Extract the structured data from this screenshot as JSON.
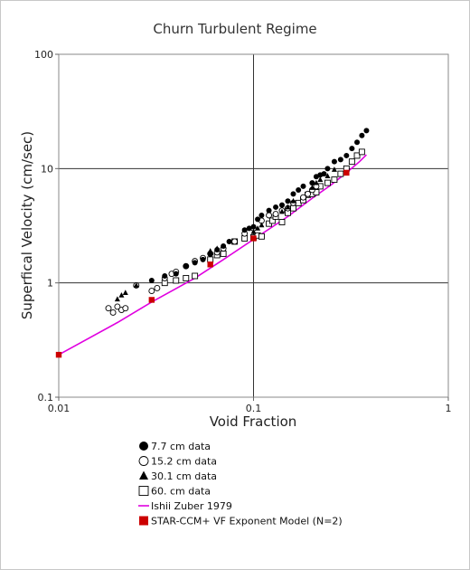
{
  "chart_data": {
    "type": "scatter",
    "title": "Churn Turbulent Regime",
    "xlabel": "Void Fraction",
    "ylabel": "Superfical Velocity (cm/sec)",
    "xscale": "log",
    "yscale": "log",
    "xlim": [
      0.01,
      1
    ],
    "ylim": [
      0.1,
      100
    ],
    "x_ticks": [
      "0.01",
      "0.1",
      "1"
    ],
    "y_ticks": [
      "0.1",
      "1",
      "10",
      "100"
    ],
    "grid": "major gridlines at 0.1 (x) and 1, 10 (y)",
    "legend_position": "below plot",
    "series": [
      {
        "name": "7.7 cm data",
        "marker": "filled-circle",
        "color": "#000000",
        "x": [
          0.03,
          0.035,
          0.04,
          0.045,
          0.05,
          0.055,
          0.06,
          0.065,
          0.07,
          0.075,
          0.09,
          0.095,
          0.1,
          0.105,
          0.11,
          0.12,
          0.13,
          0.14,
          0.15,
          0.16,
          0.17,
          0.18,
          0.2,
          0.21,
          0.22,
          0.23,
          0.24,
          0.26,
          0.28,
          0.3,
          0.32,
          0.34,
          0.36,
          0.38
        ],
        "y": [
          1.05,
          1.15,
          1.2,
          1.4,
          1.5,
          1.6,
          1.8,
          1.95,
          2.1,
          2.3,
          2.9,
          3.0,
          3.1,
          3.6,
          3.9,
          4.3,
          4.6,
          4.8,
          5.2,
          6.0,
          6.5,
          7.0,
          7.5,
          8.5,
          8.8,
          9.0,
          10.0,
          11.5,
          12.0,
          13.0,
          15.0,
          17.0,
          19.5,
          21.5
        ]
      },
      {
        "name": "15.2 cm data",
        "marker": "open-circle",
        "color": "#000000",
        "x": [
          0.018,
          0.019,
          0.02,
          0.021,
          0.022,
          0.025,
          0.03,
          0.032,
          0.035,
          0.038,
          0.04,
          0.045,
          0.05,
          0.055,
          0.06,
          0.065,
          0.07,
          0.08,
          0.09,
          0.1,
          0.11,
          0.12,
          0.13,
          0.14,
          0.15,
          0.16,
          0.18,
          0.19,
          0.2,
          0.21
        ],
        "y": [
          0.6,
          0.55,
          0.62,
          0.58,
          0.6,
          0.95,
          0.85,
          0.9,
          1.1,
          1.2,
          1.25,
          1.4,
          1.55,
          1.65,
          1.8,
          1.85,
          2.0,
          2.3,
          2.7,
          3.0,
          3.5,
          3.9,
          4.0,
          4.3,
          4.5,
          5.0,
          5.6,
          6.0,
          6.5,
          7.0
        ]
      },
      {
        "name": "30.1 cm data",
        "marker": "filled-triangle",
        "color": "#000000",
        "x": [
          0.02,
          0.021,
          0.022,
          0.025,
          0.06,
          0.065,
          0.1,
          0.105,
          0.11,
          0.14,
          0.15,
          0.16,
          0.2,
          0.21,
          0.22,
          0.24,
          0.26
        ],
        "y": [
          0.72,
          0.78,
          0.82,
          0.95,
          1.9,
          2.0,
          2.8,
          3.0,
          3.2,
          4.2,
          4.6,
          5.2,
          6.8,
          7.5,
          8.0,
          8.6,
          9.8
        ]
      },
      {
        "name": "60. cm data",
        "marker": "open-square",
        "color": "#000000",
        "x": [
          0.035,
          0.04,
          0.045,
          0.05,
          0.06,
          0.065,
          0.07,
          0.08,
          0.09,
          0.1,
          0.105,
          0.11,
          0.12,
          0.125,
          0.13,
          0.14,
          0.15,
          0.16,
          0.17,
          0.18,
          0.19,
          0.2,
          0.21,
          0.22,
          0.24,
          0.26,
          0.28,
          0.3,
          0.32,
          0.34,
          0.36
        ],
        "y": [
          1.0,
          1.05,
          1.1,
          1.15,
          1.6,
          1.75,
          1.8,
          2.3,
          2.45,
          2.5,
          2.6,
          2.55,
          3.3,
          3.5,
          3.8,
          3.4,
          4.1,
          4.5,
          5.0,
          5.3,
          5.9,
          6.0,
          6.2,
          7.0,
          7.5,
          8.0,
          9.0,
          10.0,
          11.5,
          13.0,
          14.0
        ]
      },
      {
        "name": "Ishii Zuber 1979",
        "marker": "line",
        "color": "#e000e0",
        "x": [
          0.01,
          0.02,
          0.03,
          0.05,
          0.07,
          0.1,
          0.15,
          0.2,
          0.25,
          0.3,
          0.35,
          0.38
        ],
        "y": [
          0.235,
          0.45,
          0.68,
          1.1,
          1.6,
          2.4,
          3.8,
          5.5,
          7.2,
          9.2,
          11.5,
          13.2
        ]
      },
      {
        "name": "STAR-CCM+ VF Exponent Model (N=2)",
        "marker": "filled-square",
        "color": "#cc0000",
        "x": [
          0.01,
          0.03,
          0.06,
          0.1,
          0.3
        ],
        "y": [
          0.235,
          0.71,
          1.45,
          2.45,
          9.2
        ]
      }
    ]
  }
}
